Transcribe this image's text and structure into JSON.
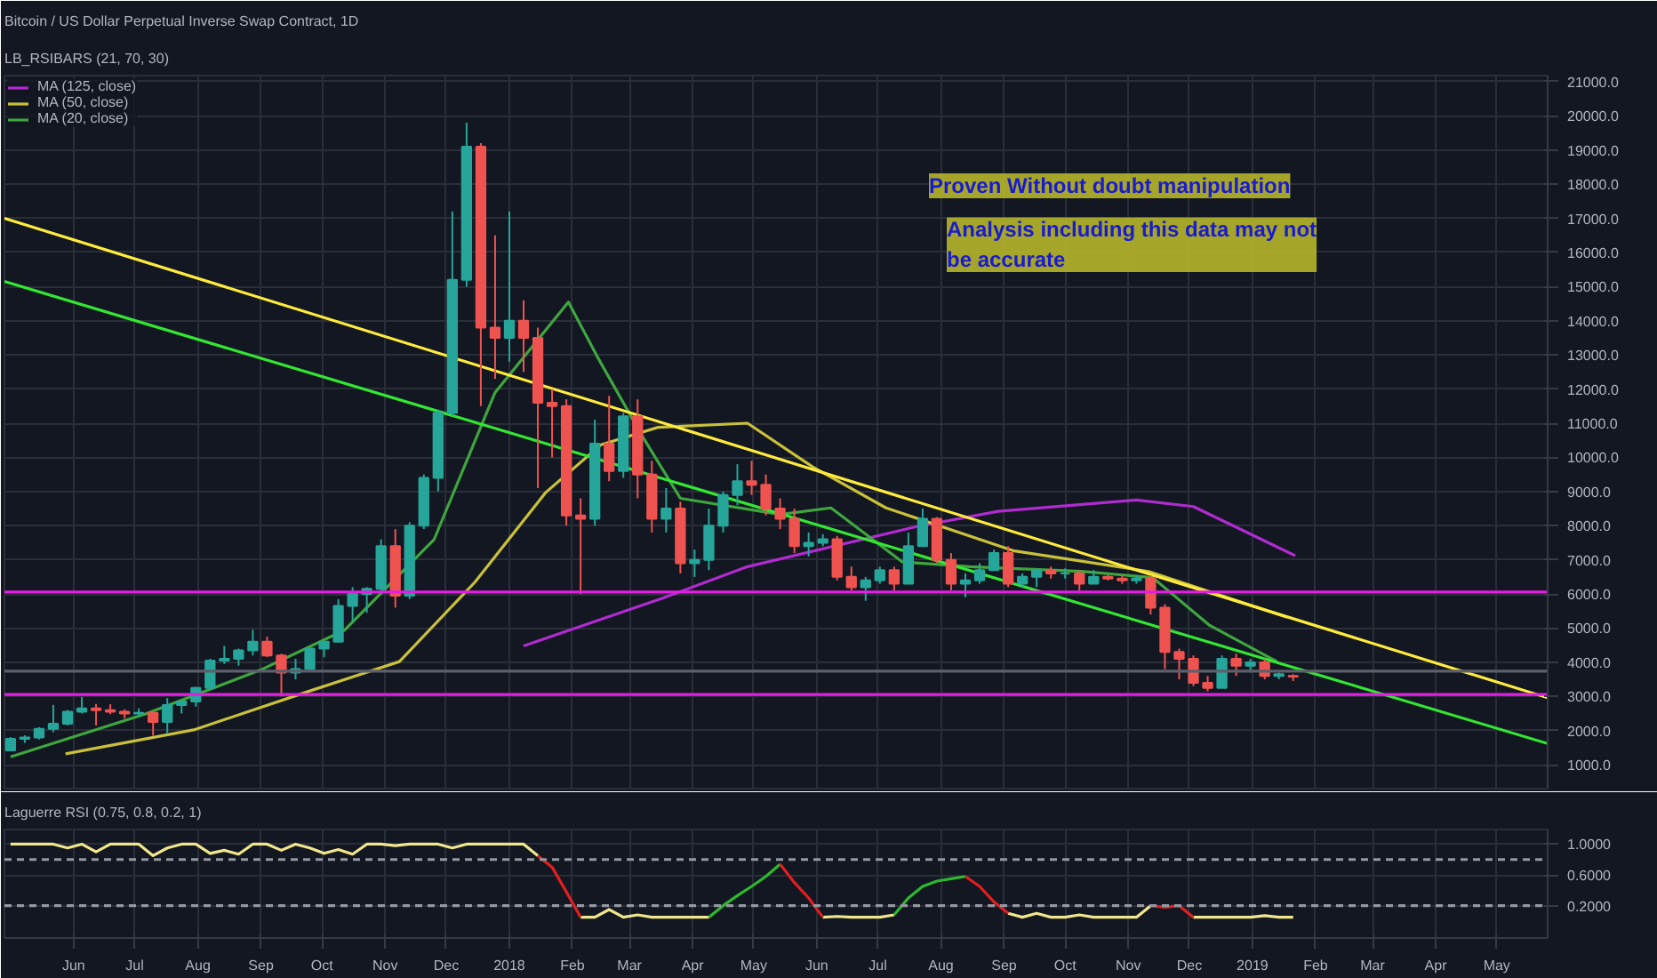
{
  "chart_data": [
    {
      "type": "candlestick",
      "title": "Bitcoin / US Dollar Perpetual Inverse Swap Contract, 1D",
      "subtitle": "LB_RSIBARS (21, 70, 30)",
      "x": [
        "2017-05-01",
        "2017-05-08",
        "2017-05-15",
        "2017-05-22",
        "2017-05-29",
        "2017-06-05",
        "2017-06-12",
        "2017-06-19",
        "2017-06-26",
        "2017-07-03",
        "2017-07-10",
        "2017-07-17",
        "2017-07-24",
        "2017-07-31",
        "2017-08-07",
        "2017-08-14",
        "2017-08-21",
        "2017-08-28",
        "2017-09-04",
        "2017-09-11",
        "2017-09-18",
        "2017-09-25",
        "2017-10-02",
        "2017-10-09",
        "2017-10-16",
        "2017-10-23",
        "2017-10-30",
        "2017-11-06",
        "2017-11-13",
        "2017-11-20",
        "2017-11-27",
        "2017-12-04",
        "2017-12-11",
        "2017-12-18",
        "2017-12-25",
        "2018-01-01",
        "2018-01-08",
        "2018-01-15",
        "2018-01-22",
        "2018-01-29",
        "2018-02-05",
        "2018-02-12",
        "2018-02-19",
        "2018-02-26",
        "2018-03-05",
        "2018-03-12",
        "2018-03-19",
        "2018-03-26",
        "2018-04-02",
        "2018-04-09",
        "2018-04-16",
        "2018-04-23",
        "2018-04-30",
        "2018-05-07",
        "2018-05-14",
        "2018-05-21",
        "2018-05-28",
        "2018-06-04",
        "2018-06-11",
        "2018-06-18",
        "2018-06-25",
        "2018-07-02",
        "2018-07-09",
        "2018-07-16",
        "2018-07-23",
        "2018-07-30",
        "2018-08-06",
        "2018-08-13",
        "2018-08-20",
        "2018-08-27",
        "2018-09-03",
        "2018-09-10",
        "2018-09-17",
        "2018-09-24",
        "2018-10-01",
        "2018-10-08",
        "2018-10-15",
        "2018-10-22",
        "2018-10-29",
        "2018-11-05",
        "2018-11-12",
        "2018-11-19",
        "2018-11-26",
        "2018-12-03",
        "2018-12-10",
        "2018-12-17",
        "2018-12-24",
        "2018-12-31",
        "2019-01-07",
        "2019-01-14",
        "2019-01-21"
      ],
      "ohlc": [
        [
          1420,
          1810,
          1420,
          1760
        ],
        [
          1760,
          1860,
          1640,
          1800
        ],
        [
          1800,
          2100,
          1740,
          2050
        ],
        [
          2050,
          2750,
          1950,
          2200
        ],
        [
          2200,
          2600,
          2150,
          2550
        ],
        [
          2550,
          2980,
          2500,
          2650
        ],
        [
          2650,
          2780,
          2150,
          2600
        ],
        [
          2600,
          2770,
          2480,
          2550
        ],
        [
          2550,
          2620,
          2350,
          2500
        ],
        [
          2500,
          2650,
          2420,
          2520
        ],
        [
          2520,
          2550,
          1850,
          2250
        ],
        [
          2250,
          2950,
          1900,
          2750
        ],
        [
          2750,
          2850,
          2500,
          2850
        ],
        [
          2850,
          3280,
          2700,
          3250
        ],
        [
          3250,
          4100,
          3250,
          4050
        ],
        [
          4050,
          4480,
          3950,
          4100
        ],
        [
          4100,
          4400,
          3900,
          4350
        ],
        [
          4350,
          4950,
          4200,
          4600
        ],
        [
          4600,
          4750,
          4150,
          4200
        ],
        [
          4200,
          4250,
          3000,
          3700
        ],
        [
          3700,
          4100,
          3500,
          3800
        ],
        [
          3800,
          4400,
          3800,
          4400
        ],
        [
          4400,
          4600,
          4150,
          4600
        ],
        [
          4600,
          5850,
          4600,
          5650
        ],
        [
          5650,
          6200,
          5200,
          6000
        ],
        [
          6000,
          6200,
          5450,
          6150
        ],
        [
          6150,
          7600,
          6050,
          7400
        ],
        [
          7400,
          7900,
          5600,
          5950
        ],
        [
          5950,
          8100,
          5850,
          8000
        ],
        [
          8000,
          9500,
          7900,
          9400
        ],
        [
          9400,
          11400,
          9000,
          11300
        ],
        [
          11300,
          17200,
          11200,
          15200
        ],
        [
          15200,
          19800,
          15000,
          19100
        ],
        [
          19100,
          19200,
          11500,
          13800
        ],
        [
          13800,
          16500,
          12300,
          13500
        ],
        [
          13500,
          17200,
          12800,
          14000
        ],
        [
          14000,
          14600,
          12500,
          13500
        ],
        [
          13500,
          13800,
          9100,
          11600
        ],
        [
          11600,
          12000,
          10000,
          11500
        ],
        [
          11500,
          11700,
          8000,
          8300
        ],
        [
          8300,
          8800,
          6000,
          8200
        ],
        [
          8200,
          11100,
          8000,
          10400
        ],
        [
          10400,
          11800,
          9300,
          9600
        ],
        [
          9600,
          11300,
          9400,
          11200
        ],
        [
          11200,
          11700,
          8800,
          9500
        ],
        [
          9500,
          9900,
          7800,
          8200
        ],
        [
          8200,
          9100,
          7800,
          8500
        ],
        [
          8500,
          8700,
          6600,
          6900
        ],
        [
          6900,
          7300,
          6500,
          7000
        ],
        [
          7000,
          8500,
          6700,
          8000
        ],
        [
          8000,
          9000,
          7800,
          8900
        ],
        [
          8900,
          9800,
          8600,
          9300
        ],
        [
          9300,
          9900,
          8900,
          9200
        ],
        [
          9200,
          9500,
          8300,
          8500
        ],
        [
          8500,
          8800,
          7900,
          8200
        ],
        [
          8200,
          8500,
          7200,
          7400
        ],
        [
          7400,
          7800,
          7100,
          7500
        ],
        [
          7500,
          7750,
          7400,
          7600
        ],
        [
          7600,
          7700,
          6400,
          6500
        ],
        [
          6500,
          6800,
          6100,
          6200
        ],
        [
          6200,
          6500,
          5800,
          6400
        ],
        [
          6400,
          6800,
          6300,
          6700
        ],
        [
          6700,
          6800,
          6100,
          6300
        ],
        [
          6300,
          7800,
          6300,
          7400
        ],
        [
          7400,
          8500,
          7400,
          8200
        ],
        [
          8200,
          8250,
          6900,
          7000
        ],
        [
          7000,
          7200,
          6100,
          6300
        ],
        [
          6300,
          6600,
          5900,
          6400
        ],
        [
          6400,
          6900,
          6300,
          6700
        ],
        [
          6700,
          7300,
          6700,
          7200
        ],
        [
          7200,
          7400,
          6200,
          6300
        ],
        [
          6300,
          6600,
          6200,
          6500
        ],
        [
          6500,
          6750,
          6200,
          6700
        ],
        [
          6700,
          6800,
          6450,
          6600
        ],
        [
          6600,
          6750,
          6450,
          6600
        ],
        [
          6600,
          6700,
          6100,
          6300
        ],
        [
          6300,
          6700,
          6300,
          6500
        ],
        [
          6500,
          6550,
          6400,
          6450
        ],
        [
          6450,
          6550,
          6300,
          6400
        ],
        [
          6400,
          6550,
          6300,
          6450
        ],
        [
          6450,
          6550,
          5400,
          5600
        ],
        [
          5600,
          5700,
          3800,
          4300
        ],
        [
          4300,
          4400,
          3500,
          4100
        ],
        [
          4100,
          4200,
          3300,
          3400
        ],
        [
          3400,
          3600,
          3150,
          3250
        ],
        [
          3250,
          4200,
          3250,
          4100
        ],
        [
          4100,
          4250,
          3600,
          3900
        ],
        [
          3900,
          4100,
          3700,
          4000
        ],
        [
          4000,
          4100,
          3500,
          3600
        ],
        [
          3600,
          3700,
          3500,
          3650
        ],
        [
          3600,
          3650,
          3450,
          3580
        ]
      ],
      "colors": [
        "#26a69a",
        "#26a69a",
        "#26a69a",
        "#26a69a",
        "#26a69a",
        "#26a69a",
        "#ef5350",
        "#ef5350",
        "#ef5350",
        "#26a69a",
        "#ef5350",
        "#26a69a",
        "#26a69a",
        "#26a69a",
        "#26a69a",
        "#26a69a",
        "#26a69a",
        "#26a69a",
        "#ef5350",
        "#ef5350",
        "#26a69a",
        "#26a69a",
        "#26a69a",
        "#26a69a",
        "#26a69a",
        "#26a69a",
        "#26a69a",
        "#ef5350",
        "#26a69a",
        "#26a69a",
        "#26a69a",
        "#26a69a",
        "#26a69a",
        "#ef5350",
        "#ef5350",
        "#26a69a",
        "#ef5350",
        "#ef5350",
        "#ef5350",
        "#ef5350",
        "#ef5350",
        "#26a69a",
        "#ef5350",
        "#26a69a",
        "#ef5350",
        "#ef5350",
        "#26a69a",
        "#ef5350",
        "#26a69a",
        "#26a69a",
        "#26a69a",
        "#26a69a",
        "#ef5350",
        "#ef5350",
        "#ef5350",
        "#ef5350",
        "#26a69a",
        "#26a69a",
        "#ef5350",
        "#ef5350",
        "#26a69a",
        "#26a69a",
        "#ef5350",
        "#26a69a",
        "#26a69a",
        "#ef5350",
        "#ef5350",
        "#26a69a",
        "#26a69a",
        "#26a69a",
        "#ef5350",
        "#26a69a",
        "#26a69a",
        "#ef5350",
        "#26a69a",
        "#ef5350",
        "#26a69a",
        "#ef5350",
        "#ef5350",
        "#26a69a",
        "#ef5350",
        "#ef5350",
        "#ef5350",
        "#ef5350",
        "#ef5350",
        "#26a69a",
        "#ef5350",
        "#26a69a",
        "#ef5350",
        "#26a69a",
        "#ef5350"
      ],
      "series": [
        {
          "type": "line",
          "name": "MA (125, close)",
          "color": "#b02bd0",
          "x": [
            "2018-01-08",
            "2018-03-17",
            "2018-04-28",
            "2018-07-19",
            "2018-08-29",
            "2018-11-05",
            "2018-12-03",
            "2019-01-22"
          ],
          "values": [
            4480,
            5870,
            6800,
            7960,
            8420,
            8750,
            8560,
            7120
          ]
        },
        {
          "type": "line",
          "name": "MA (50, close)",
          "color": "#c9c13a",
          "x": [
            "2017-05-28",
            "2017-07-30",
            "2017-09-26",
            "2017-11-08",
            "2017-12-15",
            "2018-01-19",
            "2018-02-15",
            "2018-03-15",
            "2018-04-28",
            "2018-05-30",
            "2018-07-05",
            "2018-09-06",
            "2018-11-11",
            "2019-01-18"
          ],
          "values": [
            1320,
            2020,
            3180,
            4020,
            6340,
            8980,
            10370,
            10880,
            11000,
            9720,
            8520,
            7260,
            6660,
            5320
          ]
        },
        {
          "type": "line",
          "name": "MA (20, close)",
          "color": "#3fa63f",
          "x": [
            "2017-05-01",
            "2017-07-06",
            "2017-09-01",
            "2017-10-12",
            "2017-11-25",
            "2017-12-25",
            "2018-01-30",
            "2018-02-13",
            "2018-03-07",
            "2018-03-26",
            "2018-05-14",
            "2018-06-08",
            "2018-07-13",
            "2018-08-15",
            "2018-10-09",
            "2018-11-13",
            "2018-12-11",
            "2019-01-13"
          ],
          "values": [
            1230,
            2480,
            3780,
            4940,
            7590,
            11900,
            14550,
            12970,
            10650,
            8800,
            8330,
            8520,
            6940,
            6800,
            6660,
            6480,
            5080,
            4020
          ]
        },
        {
          "type": "line",
          "color": "#ffeb3b",
          "x": [
            "2017-04-28",
            "2019-05-26"
          ],
          "values": [
            17000,
            2960
          ]
        },
        {
          "type": "line",
          "color": "#33e633",
          "x": [
            "2017-04-28",
            "2019-05-26"
          ],
          "values": [
            15150,
            1620
          ]
        }
      ],
      "ref_lines": [
        {
          "axis": "y",
          "value": 6058,
          "color": "#e01fe0"
        },
        {
          "axis": "y",
          "value": 3056,
          "color": "#e01fe0"
        },
        {
          "axis": "y",
          "value": 3740,
          "color": "#5d606b"
        }
      ],
      "annotations": [
        "Proven Without doubt manipulation",
        "Analysis including this data may not be accurate"
      ],
      "xlim": [
        "2017-04-28",
        "2019-05-26"
      ],
      "xticks": [
        {
          "value": "2017-06-01",
          "label": "Jun"
        },
        {
          "value": "2017-07-01",
          "label": "Jul"
        },
        {
          "value": "2017-08-01",
          "label": "Aug"
        },
        {
          "value": "2017-09-01",
          "label": "Sep"
        },
        {
          "value": "2017-10-01",
          "label": "Oct"
        },
        {
          "value": "2017-11-01",
          "label": "Nov"
        },
        {
          "value": "2017-12-01",
          "label": "Dec"
        },
        {
          "value": "2018-01-01",
          "label": "2018"
        },
        {
          "value": "2018-02-01",
          "label": "Feb"
        },
        {
          "value": "2018-03-01",
          "label": "Mar"
        },
        {
          "value": "2018-04-01",
          "label": "Apr"
        },
        {
          "value": "2018-05-01",
          "label": "May"
        },
        {
          "value": "2018-06-01",
          "label": "Jun"
        },
        {
          "value": "2018-07-01",
          "label": "Jul"
        },
        {
          "value": "2018-08-01",
          "label": "Aug"
        },
        {
          "value": "2018-09-01",
          "label": "Sep"
        },
        {
          "value": "2018-10-01",
          "label": "Oct"
        },
        {
          "value": "2018-11-01",
          "label": "Nov"
        },
        {
          "value": "2018-12-01",
          "label": "Dec"
        },
        {
          "value": "2019-01-01",
          "label": "2019"
        },
        {
          "value": "2019-02-01",
          "label": "Feb"
        },
        {
          "value": "2019-03-01",
          "label": "Mar"
        },
        {
          "value": "2019-04-01",
          "label": "Apr"
        },
        {
          "value": "2019-05-01",
          "label": "May"
        }
      ],
      "ylim": [
        300,
        21180
      ],
      "yticks": [
        {
          "value": 1000,
          "label": "1000.0"
        },
        {
          "value": 2000,
          "label": "2000.0"
        },
        {
          "value": 3000,
          "label": "3000.0"
        },
        {
          "value": 4000,
          "label": "4000.0"
        },
        {
          "value": 5000,
          "label": "5000.0"
        },
        {
          "value": 6000,
          "label": "6000.0"
        },
        {
          "value": 7000,
          "label": "7000.0"
        },
        {
          "value": 8000,
          "label": "8000.0"
        },
        {
          "value": 9000,
          "label": "9000.0"
        },
        {
          "value": 10000,
          "label": "10000.0"
        },
        {
          "value": 11000,
          "label": "11000.0"
        },
        {
          "value": 12000,
          "label": "12000.0"
        },
        {
          "value": 13000,
          "label": "13000.0"
        },
        {
          "value": 14000,
          "label": "14000.0"
        },
        {
          "value": 15000,
          "label": "15000.0"
        },
        {
          "value": 16000,
          "label": "16000.0"
        },
        {
          "value": 17000,
          "label": "17000.0"
        },
        {
          "value": 18000,
          "label": "18000.0"
        },
        {
          "value": 19000,
          "label": "19000.0"
        },
        {
          "value": 20000,
          "label": "20000.0"
        },
        {
          "value": 21000,
          "label": "21000.0"
        }
      ],
      "grid": true,
      "legend": "top left",
      "tick_labels": "y"
    },
    {
      "type": "line",
      "title": "Laguerre RSI (0.75, 0.8, 0.2, 1)",
      "x": [
        "2017-05-01",
        "2017-05-08",
        "2017-05-15",
        "2017-05-22",
        "2017-05-29",
        "2017-06-05",
        "2017-06-12",
        "2017-06-19",
        "2017-06-26",
        "2017-07-03",
        "2017-07-10",
        "2017-07-17",
        "2017-07-24",
        "2017-07-31",
        "2017-08-07",
        "2017-08-14",
        "2017-08-21",
        "2017-08-28",
        "2017-09-04",
        "2017-09-11",
        "2017-09-18",
        "2017-09-25",
        "2017-10-02",
        "2017-10-09",
        "2017-10-16",
        "2017-10-23",
        "2017-10-30",
        "2017-11-06",
        "2017-11-13",
        "2017-11-20",
        "2017-11-27",
        "2017-12-04",
        "2017-12-11",
        "2017-12-18",
        "2017-12-25",
        "2018-01-01",
        "2018-01-08",
        "2018-01-15",
        "2018-01-22",
        "2018-01-29",
        "2018-02-05",
        "2018-02-12",
        "2018-02-19",
        "2018-02-26",
        "2018-03-05",
        "2018-03-12",
        "2018-03-19",
        "2018-03-26",
        "2018-04-02",
        "2018-04-09",
        "2018-04-16",
        "2018-04-23",
        "2018-04-30",
        "2018-05-07",
        "2018-05-14",
        "2018-05-21",
        "2018-05-28",
        "2018-06-04",
        "2018-06-11",
        "2018-06-18",
        "2018-06-25",
        "2018-07-02",
        "2018-07-09",
        "2018-07-16",
        "2018-07-23",
        "2018-07-30",
        "2018-08-06",
        "2018-08-13",
        "2018-08-20",
        "2018-08-27",
        "2018-09-03",
        "2018-09-10",
        "2018-09-17",
        "2018-09-24",
        "2018-10-01",
        "2018-10-08",
        "2018-10-15",
        "2018-10-22",
        "2018-10-29",
        "2018-11-05",
        "2018-11-12",
        "2018-11-19",
        "2018-11-26",
        "2018-12-03",
        "2018-12-10",
        "2018-12-17",
        "2018-12-24",
        "2018-12-31",
        "2019-01-07",
        "2019-01-14",
        "2019-01-21"
      ],
      "series": [
        {
          "color": "#f0e68c",
          "values": [
            1.0,
            1.0,
            1.0,
            1.0,
            0.95,
            1.0,
            0.9,
            1.0,
            1.0,
            1.0,
            0.85,
            0.95,
            1.0,
            1.0,
            0.88,
            0.92,
            0.87,
            1.0,
            1.0,
            0.92,
            1.0,
            0.95,
            0.88,
            0.93,
            0.87,
            1.0,
            1.0,
            0.98,
            1.0,
            1.0,
            1.0,
            0.95,
            1.0,
            1.0,
            1.0,
            1.0,
            1.0,
            0.85,
            null,
            null,
            0.05,
            0.05,
            0.15,
            0.05,
            0.08,
            0.05,
            0.05,
            0.05,
            0.05,
            0.05,
            null,
            null,
            null,
            null,
            null,
            null,
            null,
            0.05,
            0.06,
            0.05,
            0.05,
            0.05,
            0.08,
            null,
            null,
            null,
            null,
            null,
            null,
            null,
            0.1,
            0.05,
            0.1,
            0.05,
            0.05,
            0.08,
            0.05,
            0.05,
            0.05,
            0.05,
            0.2,
            null,
            null,
            0.05,
            0.05,
            0.05,
            0.05,
            0.05,
            0.07,
            0.05,
            0.05
          ]
        },
        {
          "color": "#2eb82e",
          "values": [
            null,
            null,
            null,
            null,
            null,
            null,
            null,
            null,
            null,
            null,
            null,
            null,
            null,
            null,
            null,
            null,
            null,
            null,
            null,
            null,
            null,
            null,
            null,
            null,
            null,
            null,
            null,
            null,
            null,
            null,
            null,
            null,
            null,
            null,
            null,
            null,
            null,
            null,
            null,
            null,
            null,
            null,
            null,
            null,
            null,
            null,
            null,
            null,
            null,
            0.05,
            0.2,
            0.33,
            0.45,
            0.58,
            0.74,
            null,
            null,
            null,
            null,
            null,
            null,
            null,
            0.08,
            0.3,
            0.45,
            0.52,
            0.55,
            0.58,
            null,
            null,
            null,
            null,
            null,
            null,
            null,
            null,
            null,
            null,
            null,
            null,
            null,
            null,
            null,
            null,
            null,
            null,
            null,
            null,
            null,
            null,
            null
          ]
        },
        {
          "color": "#e02020",
          "values": [
            null,
            null,
            null,
            null,
            null,
            null,
            null,
            null,
            null,
            null,
            null,
            null,
            null,
            null,
            null,
            null,
            null,
            null,
            null,
            null,
            null,
            null,
            null,
            null,
            null,
            null,
            null,
            null,
            null,
            null,
            null,
            null,
            null,
            null,
            null,
            null,
            null,
            0.85,
            0.7,
            0.38,
            0.05,
            null,
            null,
            null,
            null,
            null,
            null,
            null,
            null,
            null,
            null,
            null,
            null,
            null,
            0.74,
            0.5,
            0.3,
            0.05,
            null,
            null,
            null,
            null,
            null,
            null,
            null,
            null,
            null,
            0.58,
            0.45,
            0.25,
            0.1,
            null,
            null,
            null,
            null,
            null,
            null,
            null,
            null,
            null,
            0.2,
            0.18,
            0.2,
            0.05,
            null,
            null,
            null,
            null,
            null,
            null,
            null
          ]
        }
      ],
      "ref_lines": [
        {
          "axis": "y",
          "value": 0.8,
          "color": "#9598a1",
          "line_style": "dashed"
        },
        {
          "axis": "y",
          "value": 0.2,
          "color": "#9598a1",
          "line_style": "dashed"
        }
      ],
      "xlim": [
        "2017-04-28",
        "2019-05-26"
      ],
      "xticks": [
        {
          "value": "2017-06-01",
          "label": "Jun"
        },
        {
          "value": "2017-07-01",
          "label": "Jul"
        },
        {
          "value": "2017-08-01",
          "label": "Aug"
        },
        {
          "value": "2017-09-01",
          "label": "Sep"
        },
        {
          "value": "2017-10-01",
          "label": "Oct"
        },
        {
          "value": "2017-11-01",
          "label": "Nov"
        },
        {
          "value": "2017-12-01",
          "label": "Dec"
        },
        {
          "value": "2018-01-01",
          "label": "2018"
        },
        {
          "value": "2018-02-01",
          "label": "Feb"
        },
        {
          "value": "2018-03-01",
          "label": "Mar"
        },
        {
          "value": "2018-04-01",
          "label": "Apr"
        },
        {
          "value": "2018-05-01",
          "label": "May"
        },
        {
          "value": "2018-06-01",
          "label": "Jun"
        },
        {
          "value": "2018-07-01",
          "label": "Jul"
        },
        {
          "value": "2018-08-01",
          "label": "Aug"
        },
        {
          "value": "2018-09-01",
          "label": "Sep"
        },
        {
          "value": "2018-10-01",
          "label": "Oct"
        },
        {
          "value": "2018-11-01",
          "label": "Nov"
        },
        {
          "value": "2018-12-01",
          "label": "Dec"
        },
        {
          "value": "2019-01-01",
          "label": "2019"
        },
        {
          "value": "2019-02-01",
          "label": "Feb"
        },
        {
          "value": "2019-03-01",
          "label": "Mar"
        },
        {
          "value": "2019-04-01",
          "label": "Apr"
        },
        {
          "value": "2019-05-01",
          "label": "May"
        }
      ],
      "ylim": [
        -0.22,
        1.19
      ],
      "yticks": [
        {
          "value": 1.0,
          "label": "1.0000"
        },
        {
          "value": 0.6,
          "label": "0.6000"
        },
        {
          "value": 0.2,
          "label": "0.2000"
        }
      ],
      "grid": true
    }
  ]
}
